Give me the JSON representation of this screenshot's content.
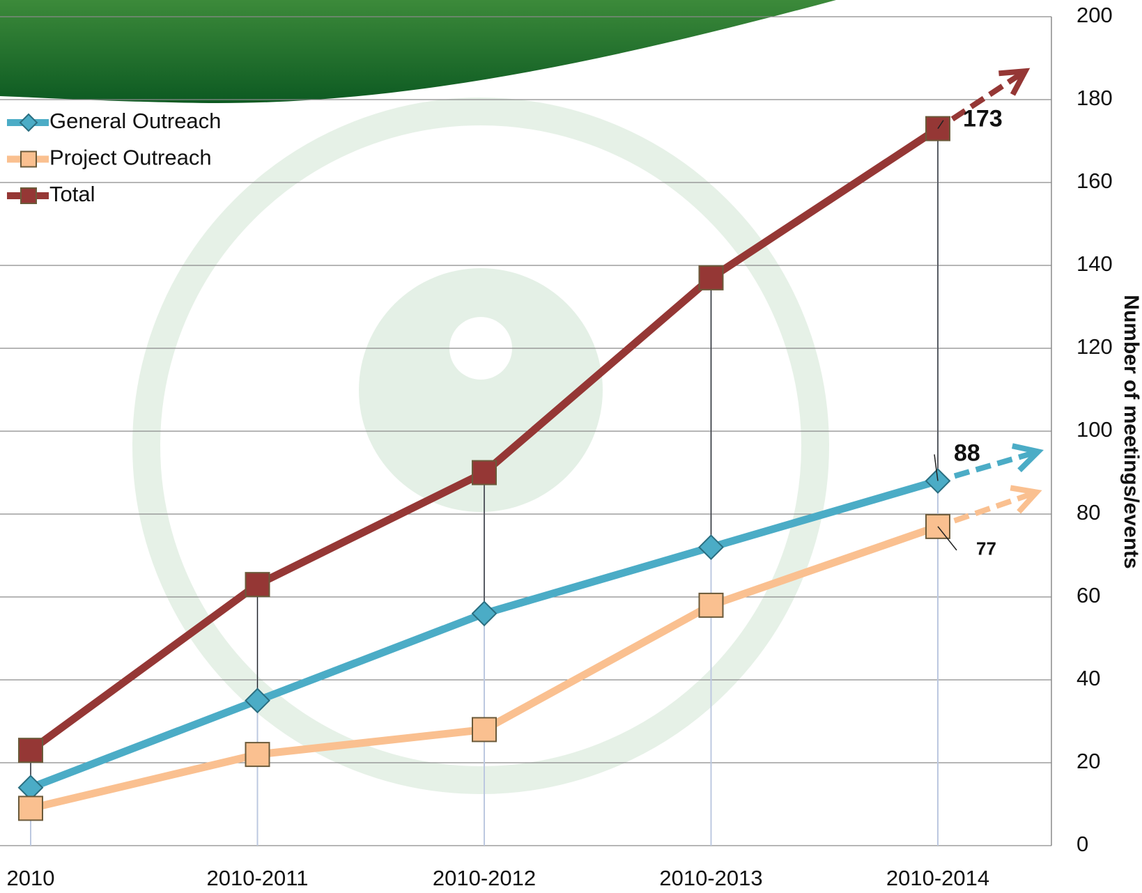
{
  "chart_data": {
    "type": "line",
    "y_label": "Number of meetings/events",
    "categories": [
      "2010",
      "2010-2011",
      "2010-2012",
      "2010-2013",
      "2010-2014"
    ],
    "series": [
      {
        "name": "General Outreach",
        "color": "#4bacc6",
        "marker": "diamond",
        "values": [
          14,
          35,
          56,
          72,
          88
        ]
      },
      {
        "name": "Project Outreach",
        "color": "#fac090",
        "marker": "square",
        "values": [
          9,
          22,
          28,
          58,
          77
        ]
      },
      {
        "name": "Total",
        "color": "#953735",
        "marker": "square",
        "values": [
          23,
          63,
          90,
          137,
          173
        ]
      }
    ],
    "ylim": [
      0,
      200
    ],
    "yticks": [
      0,
      20,
      40,
      60,
      80,
      100,
      120,
      140,
      160,
      180,
      200
    ],
    "grid": true,
    "legend": "upper left"
  }
}
